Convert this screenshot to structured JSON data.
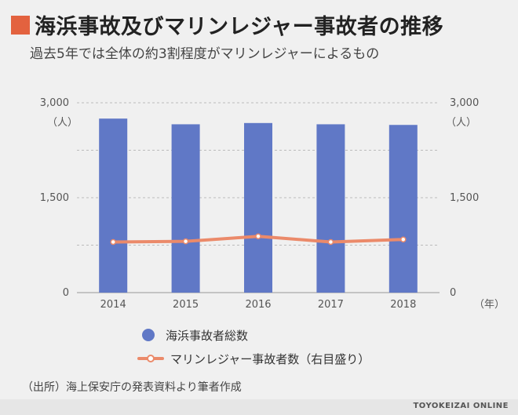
{
  "colors": {
    "accent": "#e3623f",
    "bar": "#6078c6",
    "line": "#eb8a6a",
    "grid": "#bbbbbb"
  },
  "title": "海浜事故及びマリンレジャー事故者の推移",
  "subtitle": "過去5年では全体の約3割程度がマリンレジャーによるもの",
  "source": "（出所）海上保安庁の発表資料より筆者作成",
  "brand": "TOYOKEIZAI ONLINE",
  "chart_data": {
    "type": "bar",
    "categories": [
      "2014",
      "2015",
      "2016",
      "2017",
      "2018"
    ],
    "series": [
      {
        "name": "海浜事故者総数",
        "type": "bar",
        "axis": "left",
        "values": [
          2750,
          2660,
          2680,
          2660,
          2650
        ]
      },
      {
        "name": "マリンレジャー事故者数（右目盛り）",
        "type": "line",
        "axis": "right",
        "values": [
          800,
          810,
          890,
          800,
          840
        ]
      }
    ],
    "ylim": [
      0,
      3000
    ],
    "y2lim": [
      0,
      3000
    ],
    "yticks": [
      "0",
      "1,500",
      "3,000"
    ],
    "y2ticks": [
      "0",
      "1,500",
      "3,000"
    ],
    "ylabel": "（人）",
    "y2label": "（人）",
    "xlabel": "（年）",
    "grid": true,
    "legend_position": "bottom"
  }
}
